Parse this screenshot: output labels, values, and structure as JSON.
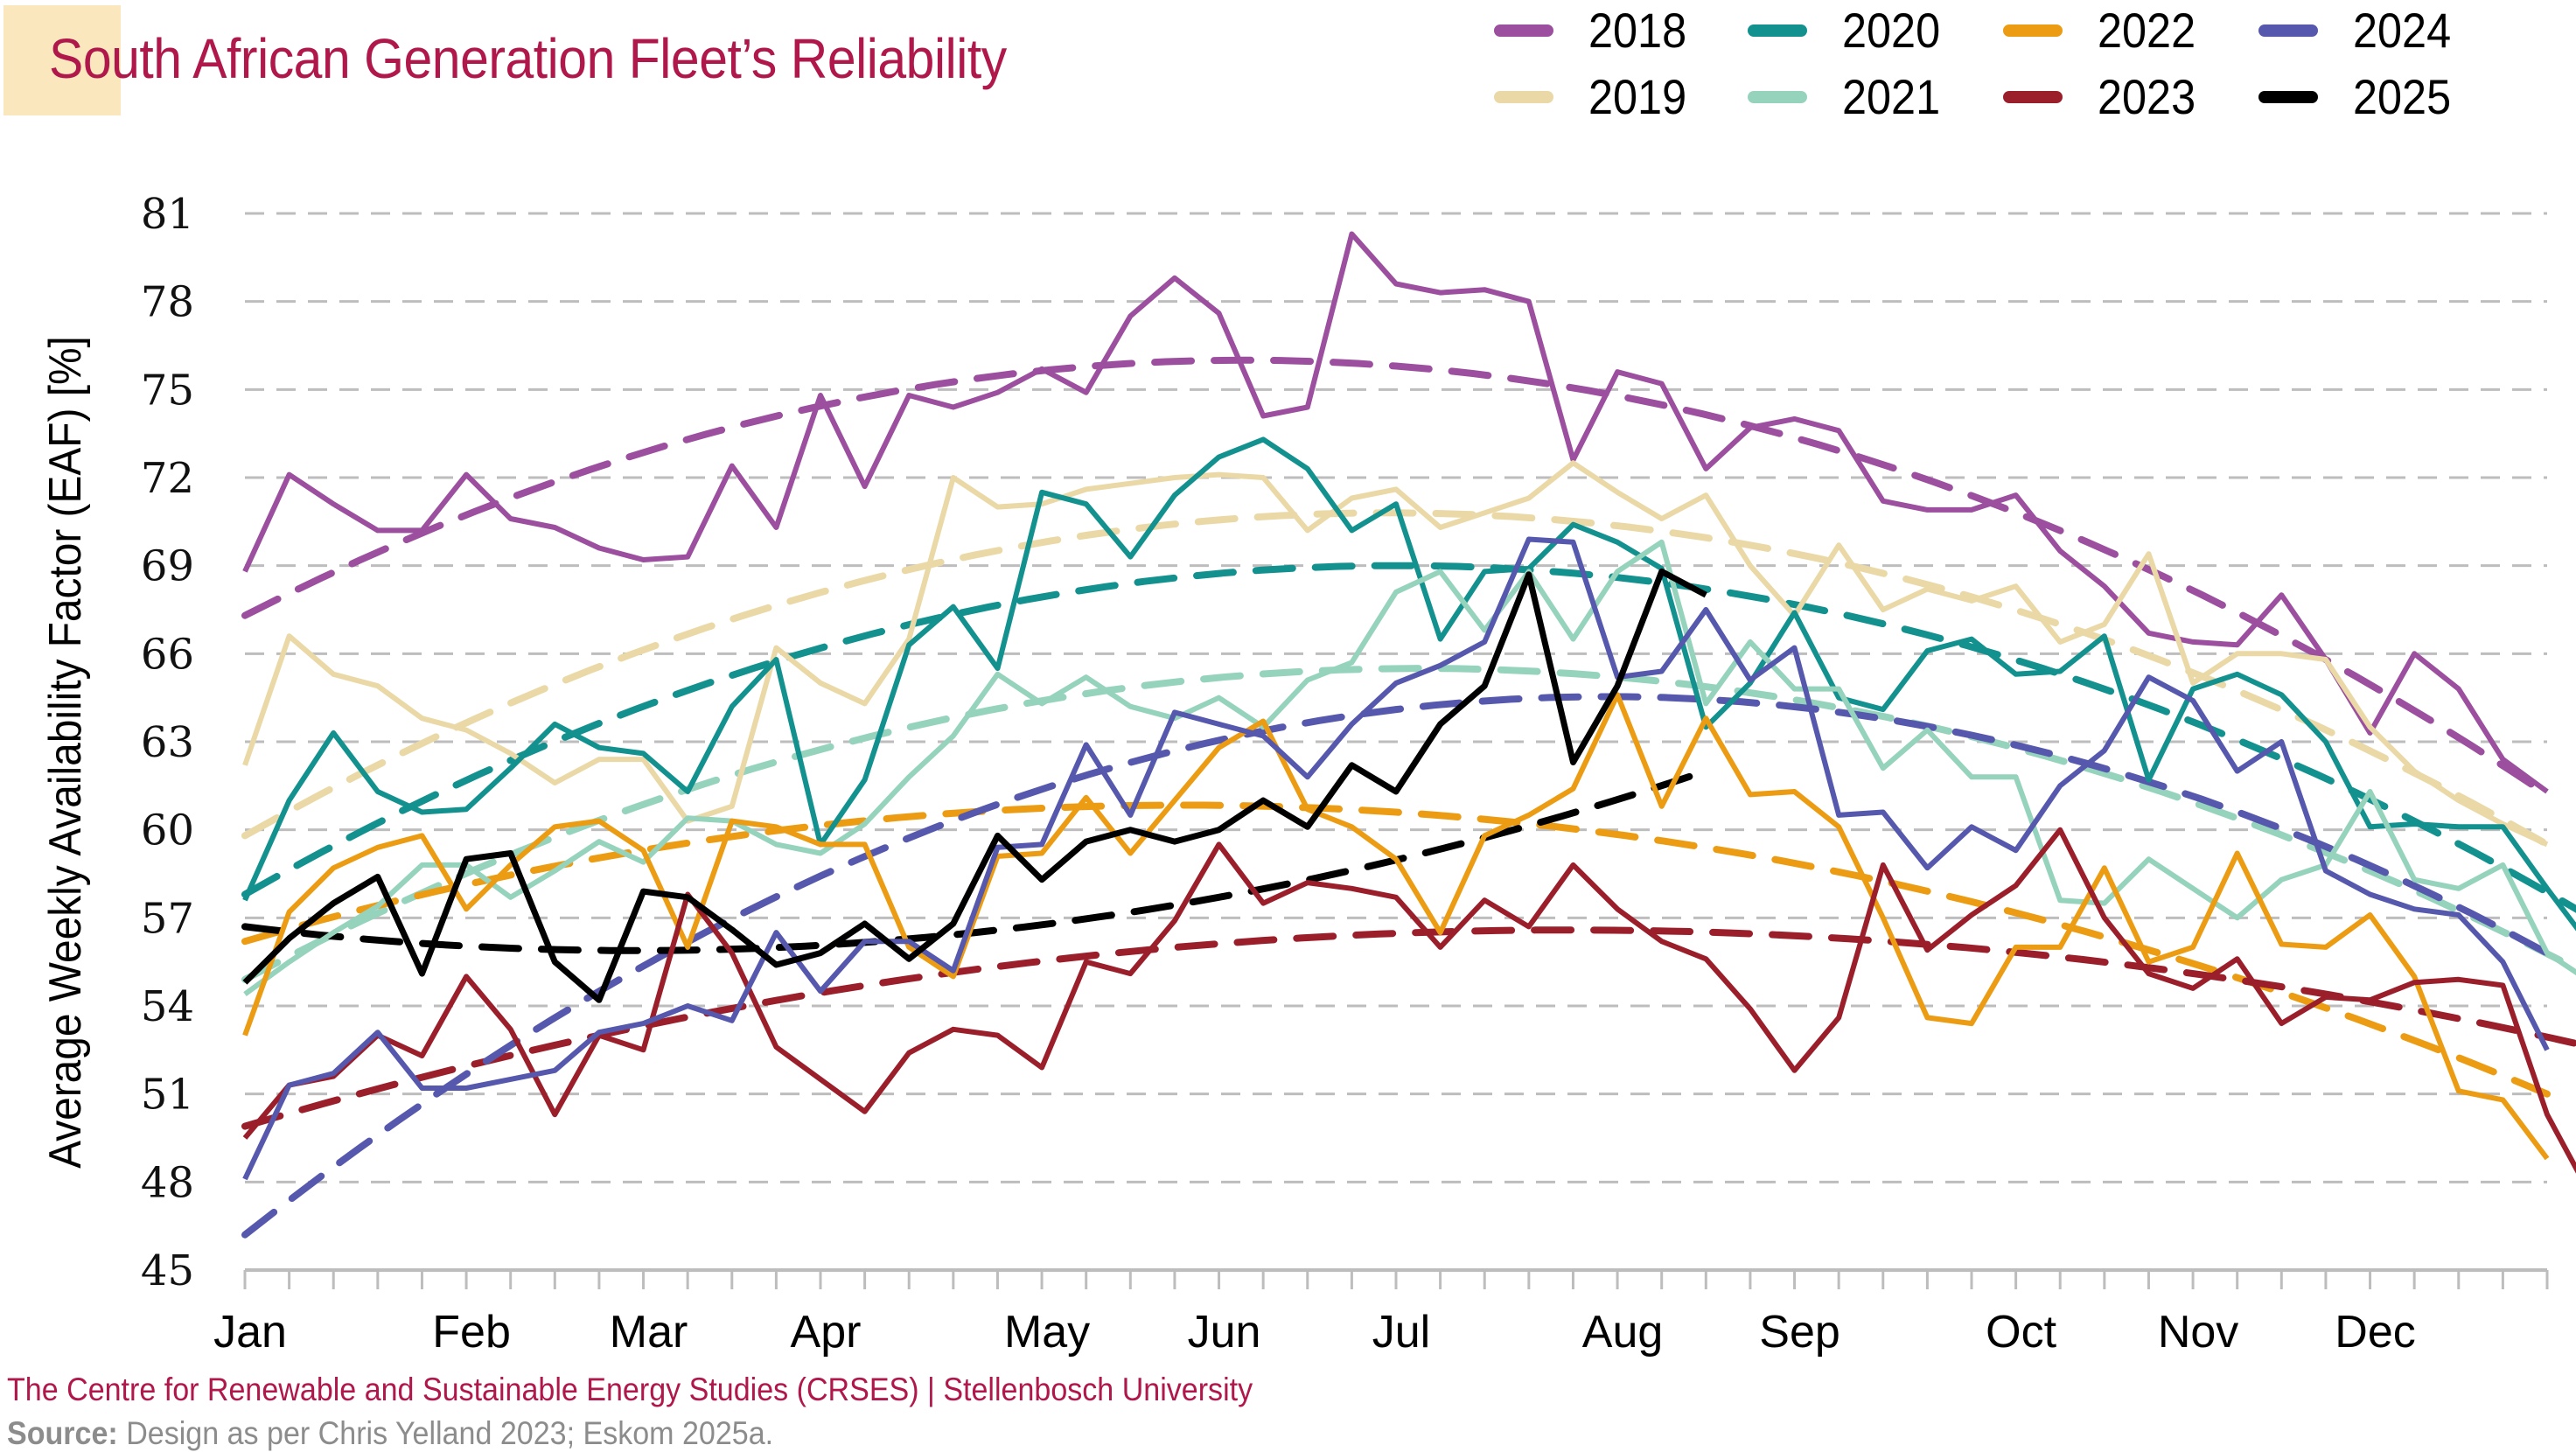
{
  "header": {
    "title": "South African Generation Fleet’s Reliability"
  },
  "footer": {
    "credit": "The Centre for Renewable and Sustainable Energy Studies (CRSES) | Stellenbosch University",
    "source_label": "Source:",
    "source_text": " Design as per Chris Yelland 2023; Eskom 2025a."
  },
  "legend": [
    {
      "label": "2018",
      "color": "#9b4f9e"
    },
    {
      "label": "2019",
      "color": "#ead9a6"
    },
    {
      "label": "2020",
      "color": "#12918f"
    },
    {
      "label": "2021",
      "color": "#96d3bd"
    },
    {
      "label": "2022",
      "color": "#eb9c13"
    },
    {
      "label": "2023",
      "color": "#9a1f2b"
    },
    {
      "label": "2024",
      "color": "#5558ac"
    },
    {
      "label": "2025",
      "color": "#000000"
    }
  ],
  "chart_data": {
    "type": "line",
    "title": "South African Generation Fleet’s Reliability",
    "xlabel": "",
    "ylabel": "Average Weekly Availability Factor (EAF) [%]",
    "ylim": [
      45,
      81
    ],
    "yticks": [
      45,
      48,
      51,
      54,
      57,
      60,
      63,
      66,
      69,
      72,
      75,
      78,
      81
    ],
    "x_unit": "week of year",
    "xlim": [
      0,
      52
    ],
    "xticks": [
      {
        "label": "Jan",
        "week": 0
      },
      {
        "label": "Feb",
        "week": 5
      },
      {
        "label": "Mar",
        "week": 9
      },
      {
        "label": "Apr",
        "week": 13
      },
      {
        "label": "May",
        "week": 18
      },
      {
        "label": "Jun",
        "week": 22
      },
      {
        "label": "Jul",
        "week": 26
      },
      {
        "label": "Aug",
        "week": 31
      },
      {
        "label": "Sep",
        "week": 35
      },
      {
        "label": "Oct",
        "week": 40
      },
      {
        "label": "Nov",
        "week": 44
      },
      {
        "label": "Dec",
        "week": 48
      }
    ],
    "grid": "horizontal dashed",
    "legend_position": "top-right",
    "trendlines": "dashed polynomial fit per series",
    "series": [
      {
        "name": "2018",
        "color": "#9b4f9e",
        "values": [
          68.8,
          72.1,
          71.1,
          70.2,
          70.2,
          72.1,
          70.6,
          70.3,
          69.6,
          69.2,
          69.3,
          72.4,
          70.3,
          74.8,
          71.7,
          74.8,
          74.4,
          74.9,
          75.7,
          74.9,
          77.5,
          78.8,
          77.6,
          74.1,
          74.4,
          80.3,
          78.6,
          78.3,
          78.4,
          78.0,
          72.6,
          75.6,
          75.2,
          72.3,
          73.7,
          74.0,
          73.6,
          71.2,
          70.9,
          70.9,
          71.4,
          69.5,
          68.3,
          66.7,
          66.4,
          66.3,
          68.0,
          65.8,
          63.3,
          66.0,
          64.8,
          62.4,
          61.3
        ],
        "trend": [
          67.3,
          75.8,
          61.2
        ]
      },
      {
        "name": "2019",
        "color": "#ead9a6",
        "values": [
          62.2,
          66.6,
          65.3,
          64.9,
          63.8,
          63.4,
          62.6,
          61.6,
          62.4,
          62.4,
          60.3,
          60.8,
          66.2,
          65.0,
          64.3,
          66.5,
          72.0,
          71.0,
          71.1,
          71.6,
          71.8,
          72.0,
          72.1,
          72.0,
          70.2,
          71.3,
          71.6,
          70.3,
          70.8,
          71.3,
          72.5,
          71.5,
          70.6,
          71.4,
          69.0,
          67.3,
          69.7,
          67.5,
          68.2,
          67.8,
          68.3,
          66.4,
          67.0,
          69.4,
          65.0,
          66.0,
          66.0,
          65.8,
          63.5,
          62.0,
          61.0,
          60.2,
          59.5
        ],
        "trend": [
          59.8,
          70.8,
          59.5
        ]
      },
      {
        "name": "2020",
        "color": "#12918f",
        "values": [
          57.6,
          61.0,
          63.3,
          61.3,
          60.6,
          60.7,
          62.1,
          63.6,
          62.8,
          62.6,
          61.3,
          64.2,
          65.8,
          59.5,
          61.7,
          66.3,
          67.6,
          65.5,
          71.5,
          71.1,
          69.3,
          71.4,
          72.7,
          73.3,
          72.3,
          70.2,
          71.1,
          66.5,
          68.8,
          68.9,
          70.4,
          69.8,
          68.9,
          63.5,
          65.0,
          67.4,
          64.5,
          64.1,
          66.1,
          66.5,
          65.3,
          65.4,
          66.6,
          61.7,
          64.8,
          65.3,
          64.6,
          63.0,
          60.1,
          60.2,
          60.1,
          60.1,
          58.0,
          56.0
        ],
        "trend": [
          57.8,
          69.0,
          57.0
        ]
      },
      {
        "name": "2021",
        "color": "#96d3bd",
        "values": [
          54.4,
          55.5,
          56.5,
          57.4,
          58.8,
          58.8,
          57.7,
          58.6,
          59.6,
          58.9,
          60.4,
          60.3,
          59.5,
          59.2,
          60.2,
          61.8,
          63.2,
          65.3,
          64.3,
          65.2,
          64.2,
          63.8,
          64.5,
          63.5,
          65.1,
          65.7,
          68.1,
          68.8,
          66.8,
          68.8,
          66.5,
          68.8,
          69.8,
          64.3,
          66.4,
          64.8,
          64.8,
          62.1,
          63.4,
          61.8,
          61.8,
          57.6,
          57.5,
          59.0,
          58.0,
          57.0,
          58.3,
          58.8,
          61.3,
          58.3,
          58.0,
          58.8,
          55.8,
          54.8
        ],
        "trend": [
          54.9,
          65.5,
          55.0
        ]
      },
      {
        "name": "2022",
        "color": "#eb9c13",
        "values": [
          53.0,
          57.2,
          58.7,
          59.4,
          59.8,
          57.3,
          58.8,
          60.1,
          60.3,
          59.3,
          56.0,
          60.3,
          60.1,
          59.5,
          59.5,
          56.0,
          55.0,
          59.1,
          59.2,
          61.1,
          59.2,
          61.0,
          62.8,
          63.7,
          60.7,
          60.1,
          59.0,
          56.5,
          59.8,
          60.5,
          61.4,
          64.6,
          60.8,
          63.8,
          61.2,
          61.3,
          60.1,
          57.0,
          53.6,
          53.4,
          56.0,
          56.0,
          58.7,
          55.5,
          56.0,
          59.2,
          56.1,
          56.0,
          57.1,
          55.0,
          51.1,
          50.8,
          48.8
        ],
        "trend": [
          56.2,
          60.6,
          51.0
        ]
      },
      {
        "name": "2023",
        "color": "#9a1f2b",
        "values": [
          49.5,
          51.3,
          51.6,
          53.0,
          52.3,
          55.0,
          53.2,
          50.3,
          53.0,
          52.5,
          57.8,
          55.8,
          52.6,
          51.5,
          50.4,
          52.4,
          53.2,
          53.0,
          51.9,
          55.5,
          55.1,
          56.9,
          59.5,
          57.5,
          58.2,
          58.0,
          57.7,
          56.0,
          57.6,
          56.7,
          58.8,
          57.3,
          56.2,
          55.6,
          53.9,
          51.8,
          53.6,
          58.8,
          55.9,
          57.1,
          58.1,
          60.0,
          57.0,
          55.1,
          54.6,
          55.6,
          53.4,
          54.3,
          54.2,
          54.8,
          54.9,
          54.7,
          50.3,
          47.5
        ],
        "trend": [
          49.9,
          56.5,
          52.6
        ]
      },
      {
        "name": "2024",
        "color": "#5558ac",
        "values": [
          48.1,
          51.3,
          51.7,
          53.1,
          51.2,
          51.2,
          51.5,
          51.8,
          53.1,
          53.4,
          54.0,
          53.5,
          56.5,
          54.5,
          56.2,
          56.2,
          55.2,
          59.4,
          59.5,
          62.9,
          60.5,
          64.0,
          63.6,
          63.2,
          61.8,
          63.6,
          65.0,
          65.6,
          66.4,
          69.9,
          69.8,
          65.2,
          65.4,
          67.5,
          65.1,
          66.2,
          60.5,
          60.6,
          58.7,
          60.1,
          59.3,
          61.5,
          62.7,
          65.2,
          64.4,
          62.0,
          63.0,
          58.6,
          57.8,
          57.3,
          57.1,
          55.5,
          52.5
        ],
        "trend": [
          46.2,
          64.1,
          55.8
        ]
      },
      {
        "name": "2025",
        "color": "#000000",
        "values": [
          54.8,
          56.3,
          57.5,
          58.4,
          55.1,
          59.0,
          59.2,
          55.5,
          54.2,
          57.9,
          57.7,
          56.6,
          55.4,
          55.8,
          56.8,
          55.6,
          56.8,
          59.8,
          58.3,
          59.6,
          60.0,
          59.6,
          60.0,
          61.0,
          60.1,
          62.2,
          61.3,
          63.6,
          64.9,
          68.7,
          62.3,
          64.9,
          68.8,
          68.0
        ],
        "trend": [
          56.7,
          56.5,
          62.0
        ]
      }
    ]
  }
}
